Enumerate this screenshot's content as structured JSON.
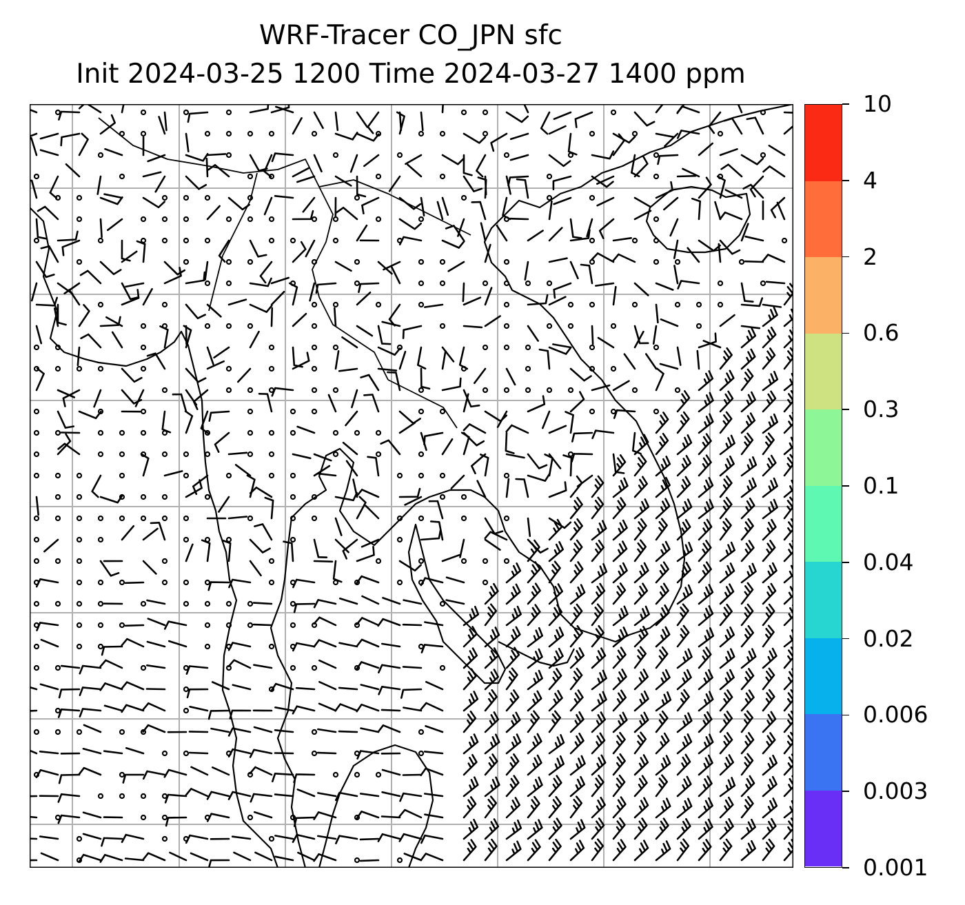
{
  "title": {
    "line1": "WRF-Tracer CO_JPN sfc",
    "line2": "Init 2024-03-25 1200 Time 2024-03-27 1400 ppm"
  },
  "colorbar": {
    "levels": [
      "0.001",
      "0.003",
      "0.006",
      "0.02",
      "0.04",
      "0.1",
      "0.3",
      "0.6",
      "2",
      "4",
      "10"
    ],
    "colors": [
      "#6a2ff6",
      "#3a74f2",
      "#06b1ec",
      "#27d6d0",
      "#5ff8b2",
      "#8df696",
      "#cfe282",
      "#fcb266",
      "#ff6e3a",
      "#fa2a14"
    ]
  },
  "map": {
    "gridlines": true,
    "wind_barbs": true,
    "coastlines": true,
    "colors": {
      "coast": "#000000",
      "grid": "#b0b0b0",
      "barb": "#000000"
    }
  }
}
